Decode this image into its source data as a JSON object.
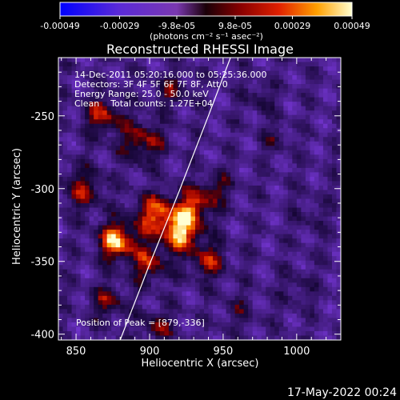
{
  "chart_data": {
    "type": "heatmap",
    "title": "Reconstructed RHESSI Image",
    "xlabel": "Heliocentric X (arcsec)",
    "ylabel": "Heliocentric Y (arcsec)",
    "xlim": [
      838,
      1030
    ],
    "ylim": [
      -404,
      -210
    ],
    "x_ticks": [
      850,
      900,
      950,
      1000
    ],
    "y_ticks": [
      -250,
      -300,
      -350,
      -400
    ],
    "colorbar": {
      "min": -0.00049,
      "max": 0.00049,
      "tick_values": [
        -0.00049,
        -0.00029,
        -9.8e-05,
        9.8e-05,
        0.00029,
        0.00049
      ],
      "tick_labels": [
        "-0.00049",
        "-0.00029",
        "-9.8e-05",
        "9.8e-05",
        "0.00029",
        "0.00049"
      ],
      "unit_label": "(photons cm⁻² s⁻¹ asec⁻²)"
    },
    "info_lines": [
      "14-Dec-2011 05:20:16.000 to 05:25:36.000",
      "Detectors: 3F 4F 5F 6F 7F 8F, Att 0",
      "Energy Range: 25.0 - 50.0 keV",
      "Clean    Total counts: 1.27E+04"
    ],
    "peak_label": "Position of Peak = [879,-336]",
    "peak_position": [
      879,
      -336
    ],
    "limb_curve": [
      [
        880,
        -404
      ],
      [
        900,
        -352
      ],
      [
        920,
        -302
      ],
      [
        940,
        -250
      ],
      [
        955,
        -210
      ]
    ],
    "hotspots": [
      {
        "x": 878,
        "y": -336,
        "amp": 1.0,
        "sigma": 9
      },
      {
        "x": 922,
        "y": -330,
        "amp": 0.95,
        "sigma": 9
      },
      {
        "x": 930,
        "y": -312,
        "amp": 0.75,
        "sigma": 8
      },
      {
        "x": 905,
        "y": -318,
        "amp": 0.8,
        "sigma": 10
      },
      {
        "x": 868,
        "y": -250,
        "amp": 0.65,
        "sigma": 9
      },
      {
        "x": 855,
        "y": -300,
        "amp": 0.55,
        "sigma": 10
      },
      {
        "x": 895,
        "y": -268,
        "amp": 0.6,
        "sigma": 10
      },
      {
        "x": 900,
        "y": -352,
        "amp": 0.6,
        "sigma": 9
      },
      {
        "x": 940,
        "y": -350,
        "amp": 0.55,
        "sigma": 9
      },
      {
        "x": 872,
        "y": -378,
        "amp": 0.5,
        "sigma": 8
      },
      {
        "x": 905,
        "y": -395,
        "amp": 0.45,
        "sigma": 8
      },
      {
        "x": 945,
        "y": -300,
        "amp": 0.4,
        "sigma": 8
      },
      {
        "x": 915,
        "y": -232,
        "amp": 0.4,
        "sigma": 8
      },
      {
        "x": 975,
        "y": -237,
        "amp": 0.3,
        "sigma": 7
      },
      {
        "x": 985,
        "y": -265,
        "amp": 0.25,
        "sigma": 7
      },
      {
        "x": 1010,
        "y": -320,
        "amp": 0.2,
        "sigma": 8
      },
      {
        "x": 1000,
        "y": -370,
        "amp": 0.22,
        "sigma": 8
      },
      {
        "x": 960,
        "y": -385,
        "amp": 0.25,
        "sigma": 8
      }
    ],
    "grid": false
  },
  "footer": {
    "timestamp": "17-May-2022 00:24"
  }
}
